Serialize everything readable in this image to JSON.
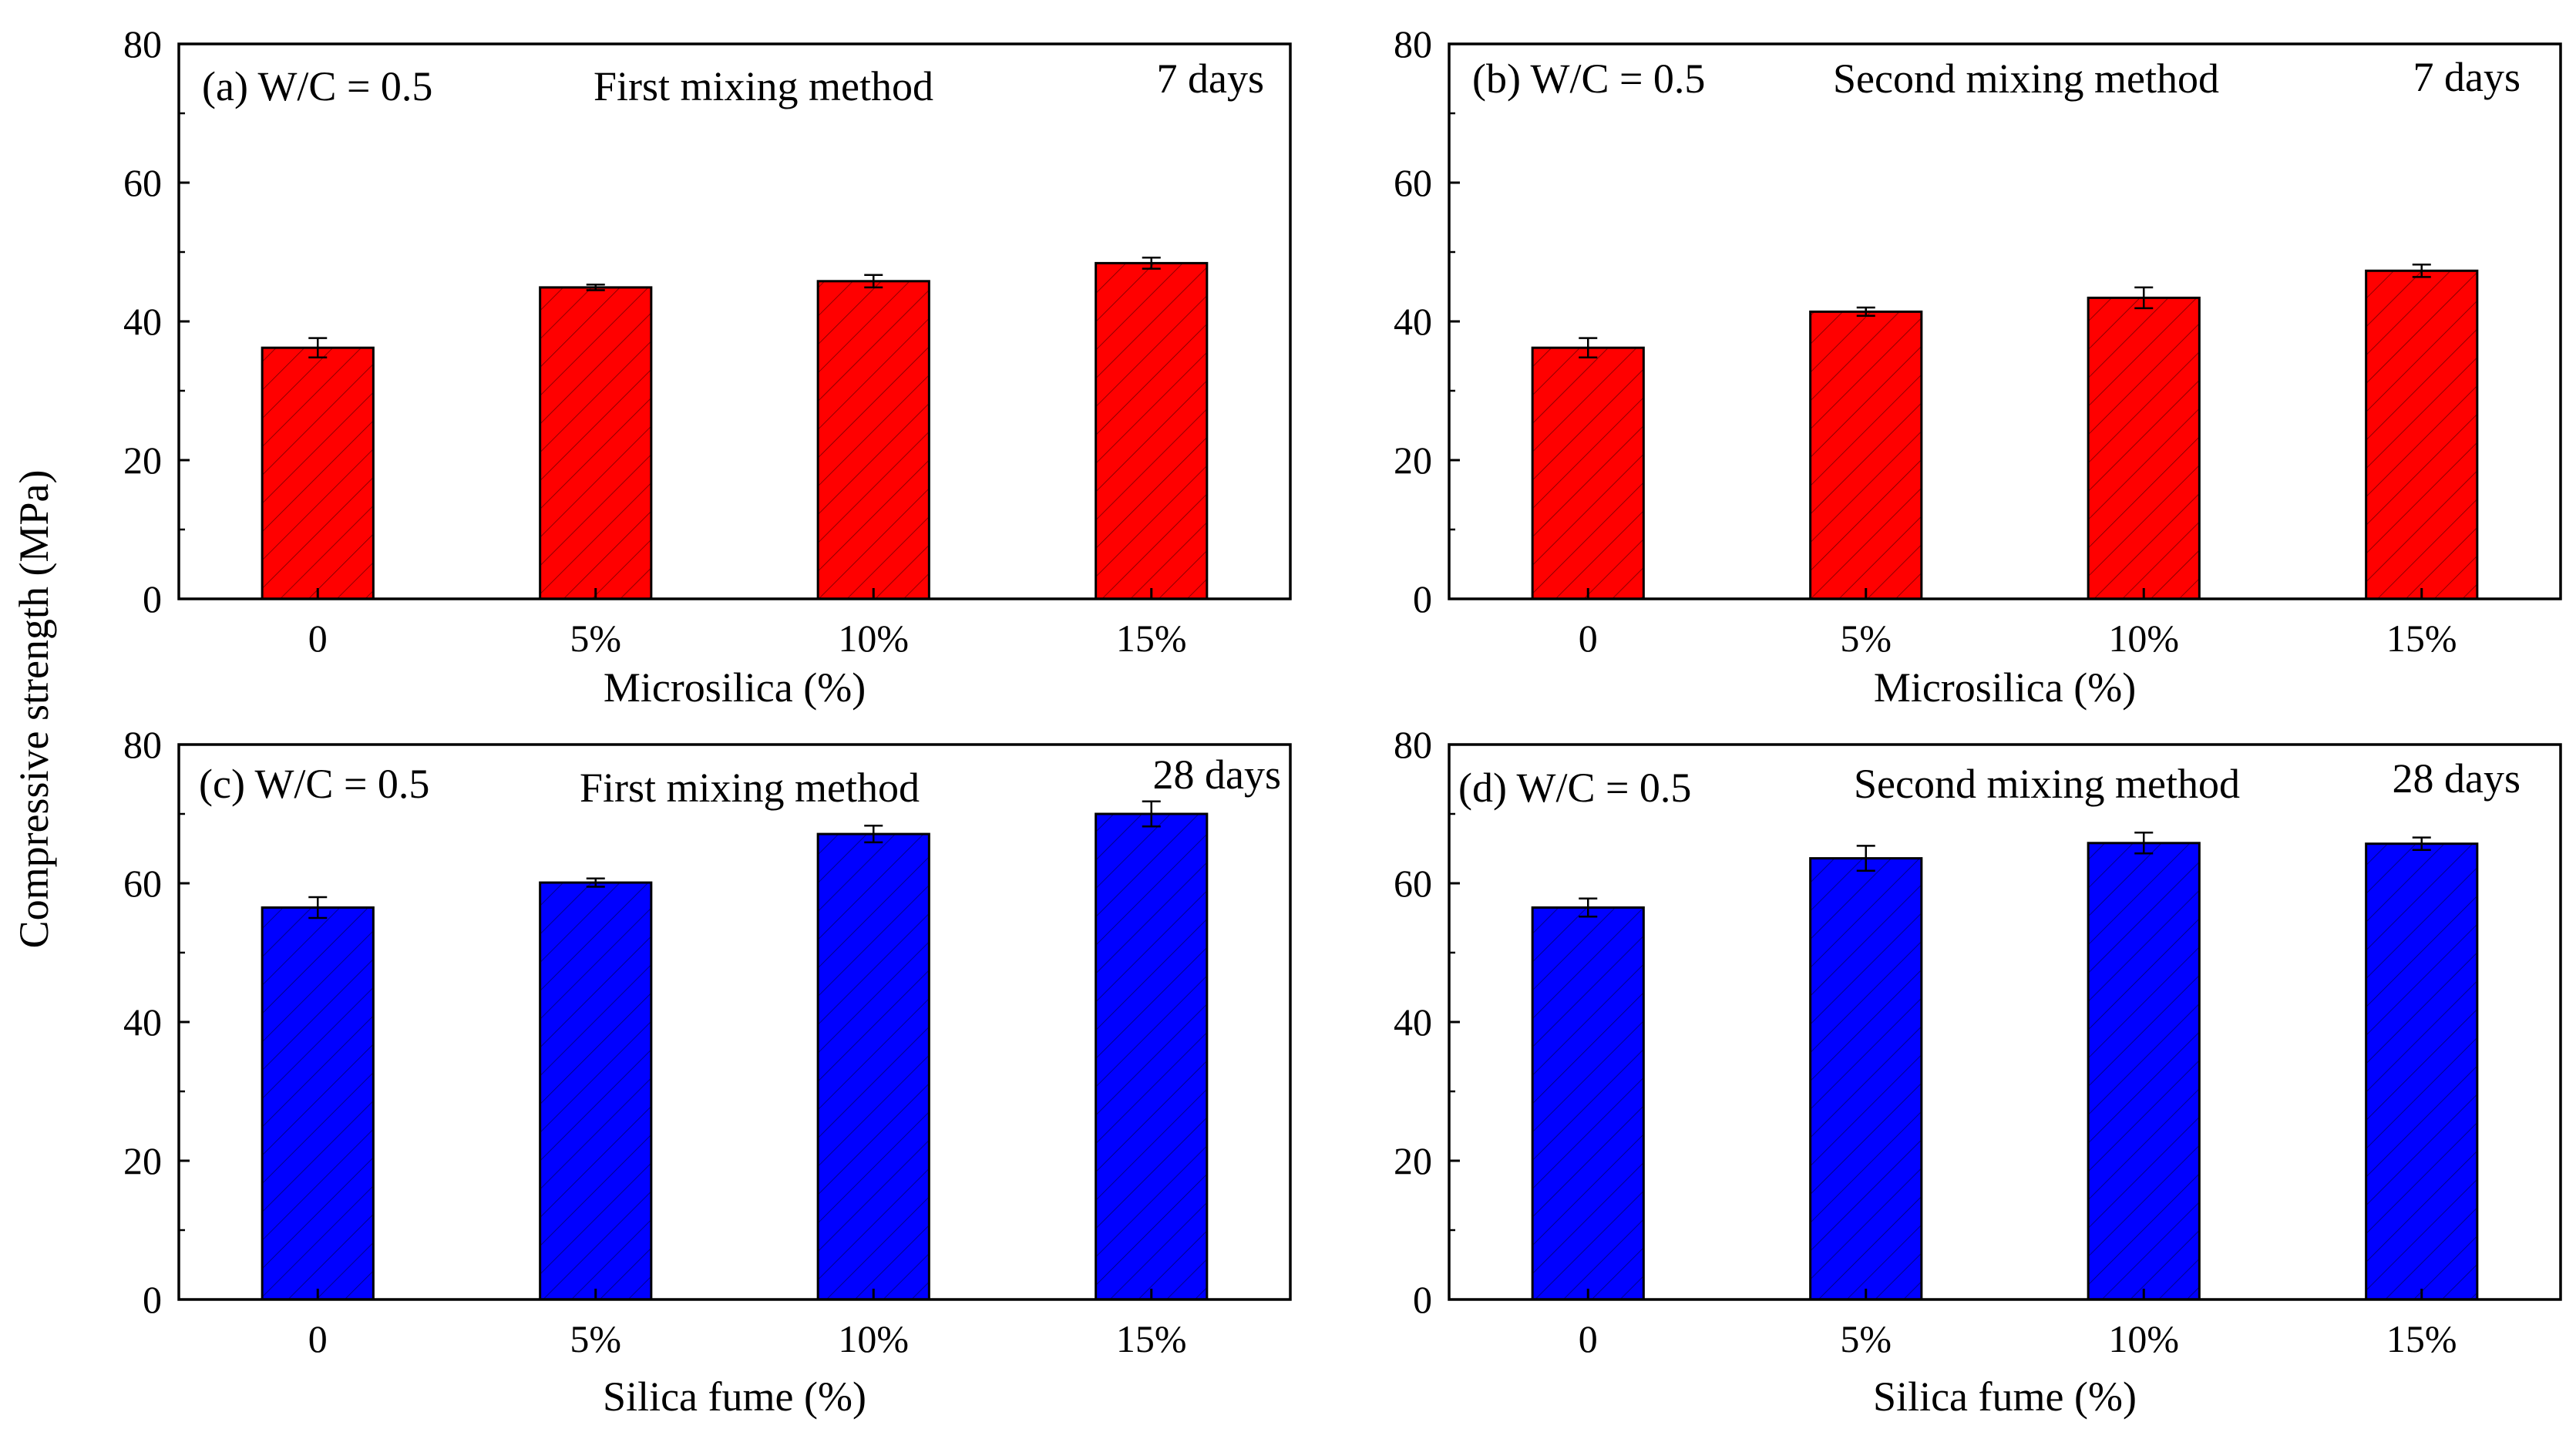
{
  "figure": {
    "ylabel": "Compressive strength (MPa)"
  },
  "chart_data": [
    {
      "type": "bar",
      "panel": "(a)",
      "annotations": {
        "ratio": "W/C = 0.5",
        "method": "First mixing method",
        "age": "7 days"
      },
      "xlabel": "Microsilica (%)",
      "ylabel": "Compressive strength (MPa)",
      "categories": [
        "0",
        "5%",
        "10%",
        "15%"
      ],
      "values": [
        36.2,
        44.9,
        45.8,
        48.4
      ],
      "errors": [
        1.4,
        0.4,
        0.9,
        0.8
      ],
      "ylim": [
        0,
        80
      ],
      "yticks": [
        0,
        20,
        40,
        60,
        80
      ],
      "bar_color": "#ff0000",
      "hatch": "diagonal",
      "grid": false
    },
    {
      "type": "bar",
      "panel": "(b)",
      "annotations": {
        "ratio": "W/C = 0.5",
        "method": "Second mixing method",
        "age": "7 days"
      },
      "xlabel": "Microsilica (%)",
      "ylabel": "Compressive strength (MPa)",
      "categories": [
        "0",
        "5%",
        "10%",
        "15%"
      ],
      "values": [
        36.2,
        41.4,
        43.4,
        47.3
      ],
      "errors": [
        1.4,
        0.6,
        1.5,
        0.9
      ],
      "ylim": [
        0,
        80
      ],
      "yticks": [
        0,
        20,
        40,
        60,
        80
      ],
      "bar_color": "#ff0000",
      "hatch": "diagonal",
      "grid": false
    },
    {
      "type": "bar",
      "panel": "(c)",
      "annotations": {
        "ratio": "W/C = 0.5",
        "method": "First mixing method",
        "age": "28 days"
      },
      "xlabel": "Silica fume (%)",
      "ylabel": "Compressive strength (MPa)",
      "categories": [
        "0",
        "5%",
        "10%",
        "15%"
      ],
      "values": [
        56.5,
        60.1,
        67.1,
        70.0
      ],
      "errors": [
        1.5,
        0.6,
        1.2,
        1.8
      ],
      "ylim": [
        0,
        80
      ],
      "yticks": [
        0,
        20,
        40,
        60,
        80
      ],
      "bar_color": "#0000ff",
      "hatch": "diagonal",
      "grid": false
    },
    {
      "type": "bar",
      "panel": "(d)",
      "annotations": {
        "ratio": "W/C = 0.5",
        "method": "Second mixing method",
        "age": "28 days"
      },
      "xlabel": "Silica fume (%)",
      "ylabel": "Compressive strength (MPa)",
      "categories": [
        "0",
        "5%",
        "10%",
        "15%"
      ],
      "values": [
        56.5,
        63.6,
        65.8,
        65.7
      ],
      "errors": [
        1.3,
        1.8,
        1.5,
        0.9
      ],
      "ylim": [
        0,
        80
      ],
      "yticks": [
        0,
        20,
        40,
        60,
        80
      ],
      "bar_color": "#0000ff",
      "hatch": "diagonal",
      "grid": false
    }
  ]
}
